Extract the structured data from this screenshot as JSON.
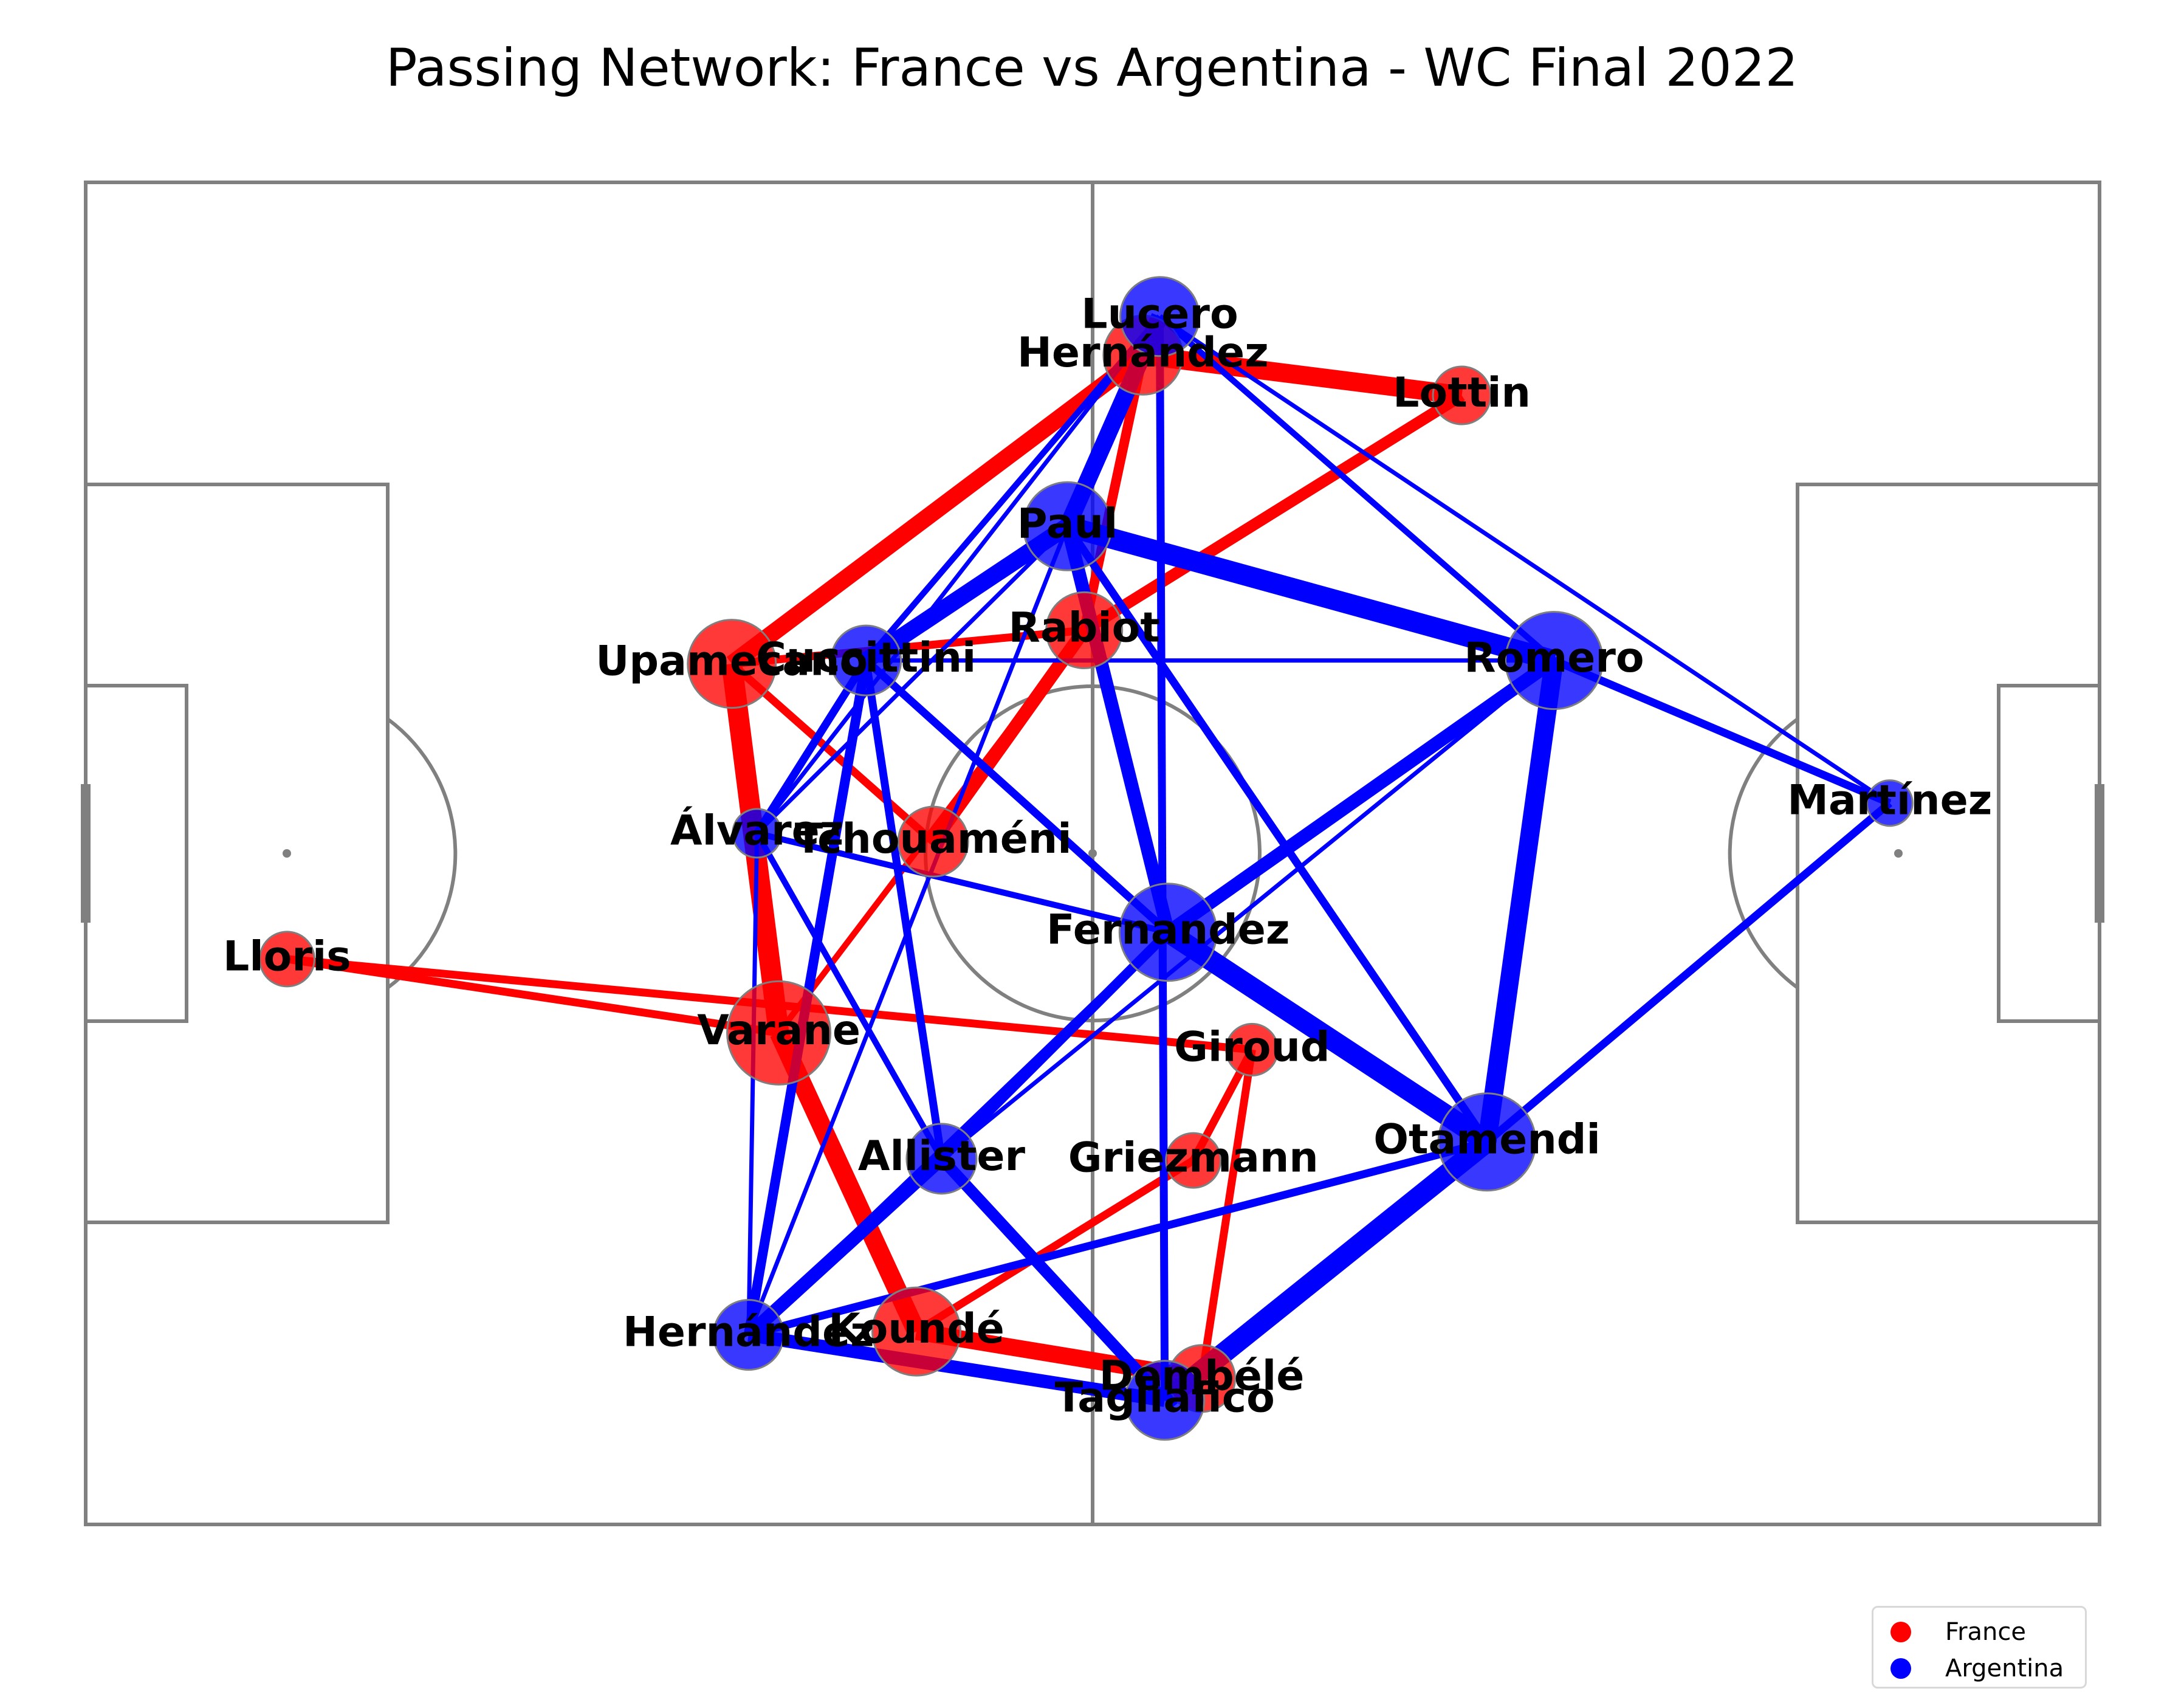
{
  "chart_data": {
    "type": "network",
    "title": "Passing Network: France vs Argentina - WC Final 2022",
    "pitch": {
      "length": 120,
      "width": 80,
      "grid": false
    },
    "legend": {
      "placement": "bottom-right",
      "entries": [
        {
          "name": "France",
          "color": "#ff0000"
        },
        {
          "name": "Argentina",
          "color": "#0000ff"
        }
      ]
    },
    "teams": [
      {
        "name": "France",
        "color": "#ff0000",
        "players": [
          {
            "id": "lloris",
            "name": "Lloris",
            "x": 12.0,
            "y": 46.3,
            "size": 36
          },
          {
            "id": "upamecano",
            "name": "Upamecano",
            "x": 38.5,
            "y": 28.7,
            "size": 58
          },
          {
            "id": "varane",
            "name": "Varane",
            "x": 41.3,
            "y": 50.7,
            "size": 68
          },
          {
            "id": "kounde",
            "name": "Koundé",
            "x": 49.5,
            "y": 68.5,
            "size": 58
          },
          {
            "id": "theo_hernandez",
            "name": "Hernández",
            "x": 63.0,
            "y": 10.3,
            "size": 52
          },
          {
            "id": "lottin",
            "name": "Lottin",
            "x": 82.0,
            "y": 12.7,
            "size": 38
          },
          {
            "id": "rabiot",
            "name": "Rabiot",
            "x": 59.5,
            "y": 26.7,
            "size": 50
          },
          {
            "id": "tchouameni",
            "name": "Tchouaméni",
            "x": 50.5,
            "y": 39.3,
            "size": 46
          },
          {
            "id": "giroud",
            "name": "Giroud",
            "x": 69.5,
            "y": 51.7,
            "size": 34
          },
          {
            "id": "griezmann",
            "name": "Griezmann",
            "x": 66.0,
            "y": 58.3,
            "size": 36
          },
          {
            "id": "dembele",
            "name": "Dembélé",
            "x": 66.5,
            "y": 71.3,
            "size": 44
          }
        ],
        "passes": [
          {
            "from": "upamecano",
            "to": "theo_hernandez",
            "count": 8
          },
          {
            "from": "upamecano",
            "to": "varane",
            "count": 10
          },
          {
            "from": "upamecano",
            "to": "tchouameni",
            "count": 3
          },
          {
            "from": "upamecano",
            "to": "rabiot",
            "count": 3
          },
          {
            "from": "varane",
            "to": "kounde",
            "count": 9
          },
          {
            "from": "varane",
            "to": "rabiot",
            "count": 2
          },
          {
            "from": "varane",
            "to": "lloris",
            "count": 3
          },
          {
            "from": "kounde",
            "to": "dembele",
            "count": 8
          },
          {
            "from": "kounde",
            "to": "griezmann",
            "count": 3
          },
          {
            "from": "theo_hernandez",
            "to": "lottin",
            "count": 9
          },
          {
            "from": "theo_hernandez",
            "to": "rabiot",
            "count": 4
          },
          {
            "from": "rabiot",
            "to": "tchouameni",
            "count": 6
          },
          {
            "from": "lottin",
            "to": "rabiot",
            "count": 5
          },
          {
            "from": "lloris",
            "to": "giroud",
            "count": 3
          },
          {
            "from": "giroud",
            "to": "griezmann",
            "count": 3
          },
          {
            "from": "giroud",
            "to": "dembele",
            "count": 3
          }
        ]
      },
      {
        "name": "Argentina",
        "color": "#0000ff",
        "players": [
          {
            "id": "martinez",
            "name": "Martínez",
            "x": 107.5,
            "y": 37.0,
            "size": 30
          },
          {
            "id": "lucero",
            "name": "Lucero",
            "x": 64.0,
            "y": 8.0,
            "size": 52
          },
          {
            "id": "paul",
            "name": "Paul",
            "x": 58.5,
            "y": 20.5,
            "size": 58
          },
          {
            "id": "cuccittini",
            "name": "Cuccittini",
            "x": 46.5,
            "y": 28.5,
            "size": 46
          },
          {
            "id": "romero",
            "name": "Romero",
            "x": 87.5,
            "y": 28.5,
            "size": 64
          },
          {
            "id": "alvarez",
            "name": "Álvarez",
            "x": 40.0,
            "y": 38.8,
            "size": 32
          },
          {
            "id": "fernandez",
            "name": "Fernandez",
            "x": 64.5,
            "y": 44.7,
            "size": 64
          },
          {
            "id": "otamendi",
            "name": "Otamendi",
            "x": 83.5,
            "y": 57.2,
            "size": 64
          },
          {
            "id": "allister",
            "name": "Allister",
            "x": 51.0,
            "y": 58.2,
            "size": 46
          },
          {
            "id": "hernandez",
            "name": "Hernández",
            "x": 39.5,
            "y": 68.7,
            "size": 46
          },
          {
            "id": "tagliafico",
            "name": "Tagliafico",
            "x": 64.3,
            "y": 72.6,
            "size": 52
          }
        ],
        "passes": [
          {
            "from": "lucero",
            "to": "paul",
            "count": 8
          },
          {
            "from": "lucero",
            "to": "cuccittini",
            "count": 2
          },
          {
            "from": "lucero",
            "to": "alvarez",
            "count": 1
          },
          {
            "from": "lucero",
            "to": "romero",
            "count": 2
          },
          {
            "from": "lucero",
            "to": "martinez",
            "count": 1
          },
          {
            "from": "lucero",
            "to": "tagliafico",
            "count": 3
          },
          {
            "from": "paul",
            "to": "cuccittini",
            "count": 8
          },
          {
            "from": "paul",
            "to": "romero",
            "count": 10
          },
          {
            "from": "paul",
            "to": "fernandez",
            "count": 6
          },
          {
            "from": "paul",
            "to": "otamendi",
            "count": 3
          },
          {
            "from": "paul",
            "to": "alvarez",
            "count": 1
          },
          {
            "from": "paul",
            "to": "hernandez",
            "count": 1
          },
          {
            "from": "cuccittini",
            "to": "romero",
            "count": 1
          },
          {
            "from": "cuccittini",
            "to": "fernandez",
            "count": 3
          },
          {
            "from": "cuccittini",
            "to": "allister",
            "count": 3
          },
          {
            "from": "cuccittini",
            "to": "hernandez",
            "count": 4
          },
          {
            "from": "cuccittini",
            "to": "alvarez",
            "count": 3
          },
          {
            "from": "romero",
            "to": "otamendi",
            "count": 9
          },
          {
            "from": "romero",
            "to": "fernandez",
            "count": 6
          },
          {
            "from": "romero",
            "to": "martinez",
            "count": 3
          },
          {
            "from": "romero",
            "to": "allister",
            "count": 1
          },
          {
            "from": "fernandez",
            "to": "otamendi",
            "count": 10
          },
          {
            "from": "fernandez",
            "to": "allister",
            "count": 4
          },
          {
            "from": "fernandez",
            "to": "alvarez",
            "count": 2
          },
          {
            "from": "fernandez",
            "to": "hernandez",
            "count": 2
          },
          {
            "from": "alvarez",
            "to": "allister",
            "count": 2
          },
          {
            "from": "alvarez",
            "to": "hernandez",
            "count": 1
          },
          {
            "from": "allister",
            "to": "tagliafico",
            "count": 5
          },
          {
            "from": "allister",
            "to": "hernandez",
            "count": 6
          },
          {
            "from": "otamendi",
            "to": "tagliafico",
            "count": 10
          },
          {
            "from": "otamendi",
            "to": "martinez",
            "count": 3
          },
          {
            "from": "otamendi",
            "to": "hernandez",
            "count": 3
          },
          {
            "from": "hernandez",
            "to": "tagliafico",
            "count": 6
          }
        ]
      }
    ]
  }
}
